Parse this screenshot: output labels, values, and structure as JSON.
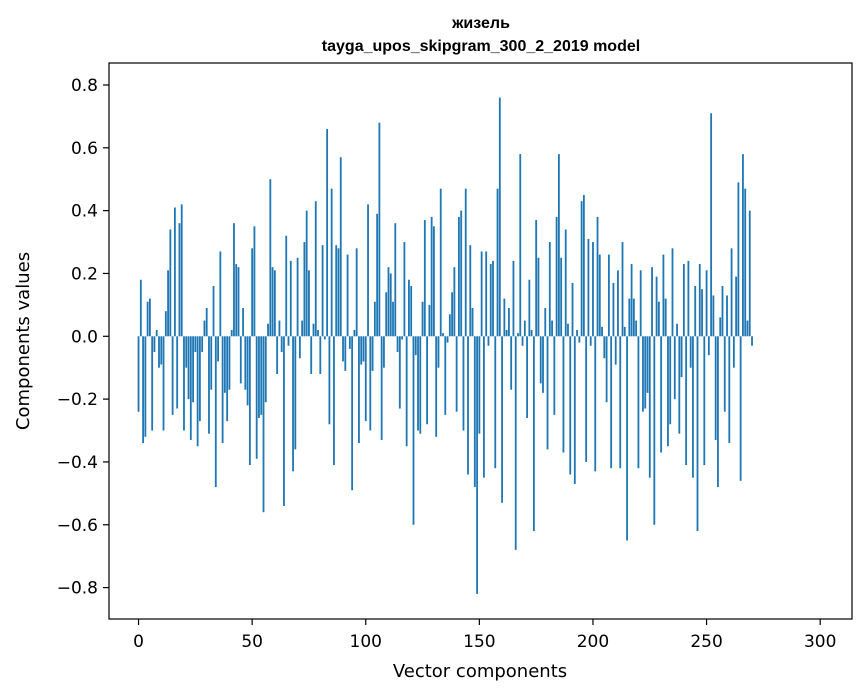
{
  "chart_data": {
    "type": "bar",
    "title": "жизель",
    "subtitle": "tayga_upos_skipgram_300_2_2019 model",
    "xlabel": "Vector components",
    "ylabel": "Components values",
    "xlim": [
      -13,
      314
    ],
    "ylim": [
      -0.9,
      0.87
    ],
    "x_ticks": [
      0,
      50,
      100,
      150,
      200,
      250,
      300
    ],
    "x_tick_labels": [
      "0",
      "50",
      "100",
      "150",
      "200",
      "250",
      "300"
    ],
    "y_ticks": [
      -0.8,
      -0.6,
      -0.4,
      -0.2,
      0.0,
      0.2,
      0.4,
      0.6,
      0.8
    ],
    "y_tick_labels": [
      "−0.8",
      "−0.6",
      "−0.4",
      "−0.2",
      "0.0",
      "0.2",
      "0.4",
      "0.6",
      "0.8"
    ],
    "bar_color": "#1f77b4",
    "series": [
      {
        "name": "жизель",
        "values": [
          -0.24,
          0.18,
          -0.34,
          -0.32,
          0.11,
          0.12,
          -0.3,
          -0.05,
          0.02,
          -0.1,
          -0.09,
          -0.3,
          0.08,
          0.21,
          0.34,
          -0.25,
          0.41,
          -0.23,
          0.36,
          0.42,
          -0.3,
          -0.1,
          -0.2,
          -0.33,
          -0.21,
          -0.05,
          -0.35,
          -0.27,
          -0.05,
          0.05,
          0.09,
          -0.31,
          -0.17,
          0.16,
          -0.48,
          -0.08,
          0.27,
          -0.34,
          -0.18,
          -0.27,
          -0.17,
          0.02,
          0.36,
          0.23,
          0.22,
          -0.15,
          0.09,
          -0.17,
          -0.22,
          -0.41,
          0.28,
          0.35,
          -0.39,
          -0.26,
          -0.25,
          -0.56,
          -0.21,
          0.04,
          0.5,
          0.22,
          0.21,
          -0.12,
          0.05,
          -0.05,
          -0.54,
          0.32,
          -0.03,
          0.24,
          -0.43,
          -0.36,
          0.25,
          -0.07,
          0.05,
          0.3,
          0.4,
          0.21,
          -0.12,
          0.04,
          0.43,
          0.02,
          -0.12,
          0.29,
          -0.01,
          0.66,
          -0.28,
          0.47,
          -0.41,
          0.29,
          0.28,
          0.57,
          -0.08,
          -0.11,
          0.26,
          -0.04,
          -0.49,
          0.02,
          0.28,
          -0.34,
          -0.09,
          -0.08,
          -0.27,
          0.42,
          -0.3,
          -0.11,
          0.11,
          0.39,
          0.68,
          -0.33,
          -0.1,
          0.14,
          0.22,
          0.2,
          0.11,
          0.36,
          -0.05,
          -0.23,
          -0.01,
          0.3,
          -0.35,
          0.18,
          0.16,
          -0.6,
          -0.06,
          -0.3,
          -0.31,
          0.11,
          0.37,
          -0.28,
          0.1,
          0.38,
          0.35,
          -0.32,
          -0.1,
          0.47,
          0.01,
          -0.25,
          -0.02,
          0.07,
          0.14,
          0.22,
          -0.24,
          0.38,
          0.4,
          -0.3,
          0.47,
          -0.44,
          0.29,
          0.09,
          -0.48,
          -0.82,
          -0.31,
          0.27,
          -0.45,
          0.27,
          -0.03,
          0.23,
          0.24,
          -0.42,
          0.47,
          0.76,
          -0.53,
          0.12,
          0.02,
          0.09,
          -0.17,
          0.24,
          -0.68,
          0.01,
          0.58,
          -0.03,
          0.05,
          -0.26,
          0.18,
          0.02,
          -0.62,
          0.37,
          0.25,
          -0.15,
          -0.18,
          0.09,
          -0.36,
          0.3,
          0.05,
          -0.25,
          0.38,
          0.58,
          0.25,
          -0.37,
          0.34,
          0.04,
          -0.44,
          0.17,
          -0.47,
          0.02,
          -0.02,
          0.43,
          0.45,
          -0.4,
          0.31,
          -0.03,
          0.3,
          -0.43,
          0.38,
          0.26,
          0.03,
          -0.07,
          -0.21,
          0.26,
          -0.42,
          0.17,
          -0.09,
          0.21,
          -0.42,
          0.3,
          0.03,
          -0.65,
          0.12,
          0.23,
          0.12,
          0.05,
          -0.42,
          0.21,
          -0.24,
          -0.23,
          -0.18,
          -0.45,
          0.22,
          -0.6,
          0.19,
          0.11,
          -0.37,
          0.26,
          0.12,
          -0.35,
          -0.28,
          0.28,
          -0.2,
          0.04,
          -0.31,
          -0.13,
          0.23,
          -0.41,
          0.24,
          -0.1,
          -0.45,
          0.16,
          -0.62,
          0.23,
          0.15,
          -0.41,
          0.21,
          -0.06,
          0.71,
          0.13,
          -0.33,
          -0.48,
          0.06,
          0.16,
          -0.24,
          0.13,
          -0.34,
          0.28,
          -0.1,
          0.19,
          0.49,
          -0.46,
          0.58,
          0.47,
          0.05,
          0.4,
          -0.03
        ]
      }
    ]
  }
}
